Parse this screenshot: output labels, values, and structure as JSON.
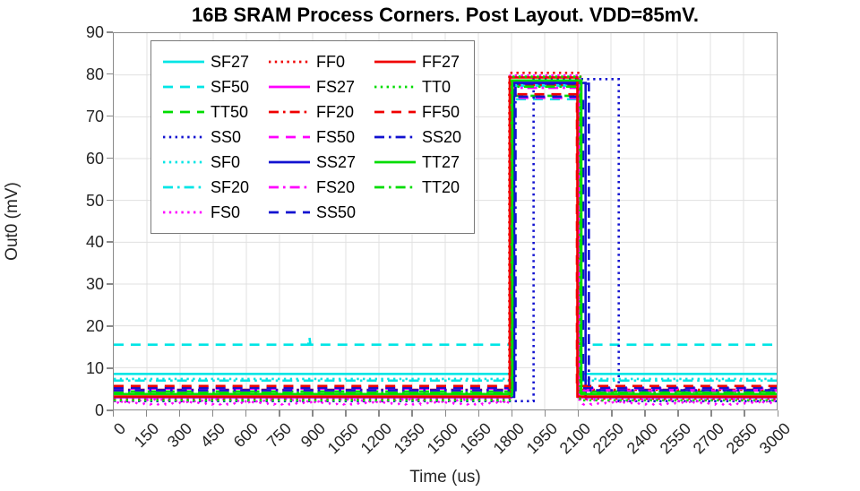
{
  "title": "16B SRAM Process Corners. Post Layout. VDD=85mV.",
  "chart_data": {
    "type": "line",
    "title": "16B SRAM Process Corners. Post Layout. VDD=85mV.",
    "xlabel": "Time (us)",
    "ylabel": "Out0 (mV)",
    "xlim": [
      0,
      3000
    ],
    "ylim": [
      0,
      90
    ],
    "xticks": [
      0,
      150,
      300,
      450,
      600,
      750,
      900,
      1050,
      1200,
      1350,
      1500,
      1650,
      1800,
      1950,
      2100,
      2250,
      2400,
      2550,
      2700,
      2850,
      3000
    ],
    "yticks": [
      0,
      10,
      20,
      30,
      40,
      50,
      60,
      70,
      80,
      90
    ],
    "grid": true,
    "grid_color": "#e0e0e0",
    "axis_color": "#8a8a8a",
    "legend": {
      "position": "top-left",
      "columns": 3,
      "rows": 7
    },
    "style_key": {
      "solid": "27C",
      "dashed": "50C",
      "dotted": "0C",
      "dashdot": "20C"
    },
    "corner_colors": {
      "SF": "#00e5e5",
      "FF": "#f00000",
      "TT": "#00dc00",
      "SS": "#1212d0",
      "FS": "#ff00ff"
    },
    "series": [
      {
        "name": "SF27",
        "color": "#00e5e5",
        "style": "solid",
        "baseline_mV": 8.5,
        "high_mV": 78.0,
        "rise_us": 1800,
        "fall_us": 2106
      },
      {
        "name": "SF50",
        "color": "#00e5e5",
        "style": "dashed",
        "baseline_mV": 15.5,
        "high_mV": 74.2,
        "rise_us": 1799,
        "fall_us": 2100,
        "glitch": {
          "t_us": 885,
          "v_mV": 17.4
        }
      },
      {
        "name": "TT50",
        "color": "#00dc00",
        "style": "dashed",
        "baseline_mV": 4.3,
        "high_mV": 75.0,
        "rise_us": 1801,
        "fall_us": 2108
      },
      {
        "name": "SS0",
        "color": "#1212d0",
        "style": "dotted",
        "baseline_mV": 2.0,
        "high_mV": 79.0,
        "rise_us": 1900,
        "fall_us": 2285
      },
      {
        "name": "SF0",
        "color": "#00e5e5",
        "style": "dotted",
        "baseline_mV": 7.3,
        "high_mV": 78.3,
        "rise_us": 1798,
        "fall_us": 2103
      },
      {
        "name": "SF20",
        "color": "#00e5e5",
        "style": "dashdot",
        "baseline_mV": 6.9,
        "high_mV": 77.4,
        "rise_us": 1802,
        "fall_us": 2109
      },
      {
        "name": "FS0",
        "color": "#ff00ff",
        "style": "dotted",
        "baseline_mV": 1.8,
        "high_mV": 79.9,
        "rise_us": 1795,
        "fall_us": 2107,
        "wave": {
          "amp_mV": 0.6,
          "period_us": 35
        }
      },
      {
        "name": "FF0",
        "color": "#f00000",
        "style": "dotted",
        "baseline_mV": 2.6,
        "high_mV": 80.5,
        "rise_us": 1790,
        "fall_us": 2112
      },
      {
        "name": "FS27",
        "color": "#ff00ff",
        "style": "solid",
        "baseline_mV": 2.9,
        "high_mV": 78.4,
        "rise_us": 1796,
        "fall_us": 2103
      },
      {
        "name": "FF20",
        "color": "#f00000",
        "style": "dashdot",
        "baseline_mV": 4.7,
        "high_mV": 77.6,
        "rise_us": 1793,
        "fall_us": 2100
      },
      {
        "name": "FS50",
        "color": "#ff00ff",
        "style": "dashed",
        "baseline_mV": 5.0,
        "high_mV": 74.5,
        "rise_us": 1797,
        "fall_us": 2101
      },
      {
        "name": "SS27",
        "color": "#1212d0",
        "style": "solid",
        "baseline_mV": 3.0,
        "high_mV": 78.1,
        "rise_us": 1812,
        "fall_us": 2135
      },
      {
        "name": "FS20",
        "color": "#ff00ff",
        "style": "dashdot",
        "baseline_mV": 4.5,
        "high_mV": 76.9,
        "rise_us": 1799,
        "fall_us": 2104
      },
      {
        "name": "SS50",
        "color": "#1212d0",
        "style": "dashed",
        "baseline_mV": 5.2,
        "high_mV": 74.8,
        "rise_us": 1808,
        "fall_us": 2124
      },
      {
        "name": "FF27",
        "color": "#f00000",
        "style": "solid",
        "baseline_mV": 3.1,
        "high_mV": 79.4,
        "rise_us": 1792,
        "fall_us": 2098
      },
      {
        "name": "TT0",
        "color": "#00dc00",
        "style": "dotted",
        "baseline_mV": 2.2,
        "high_mV": 79.6,
        "rise_us": 1800,
        "fall_us": 2110
      },
      {
        "name": "FF50",
        "color": "#f00000",
        "style": "dashed",
        "baseline_mV": 5.6,
        "high_mV": 75.4,
        "rise_us": 1794,
        "fall_us": 2096
      },
      {
        "name": "SS20",
        "color": "#1212d0",
        "style": "dashdot",
        "baseline_mV": 4.6,
        "high_mV": 77.9,
        "rise_us": 1818,
        "fall_us": 2150
      },
      {
        "name": "TT27",
        "color": "#00dc00",
        "style": "solid",
        "baseline_mV": 3.7,
        "high_mV": 78.7,
        "rise_us": 1803,
        "fall_us": 2116
      },
      {
        "name": "TT20",
        "color": "#00dc00",
        "style": "dashdot",
        "baseline_mV": 4.0,
        "high_mV": 77.2,
        "rise_us": 1804,
        "fall_us": 2112
      }
    ]
  }
}
